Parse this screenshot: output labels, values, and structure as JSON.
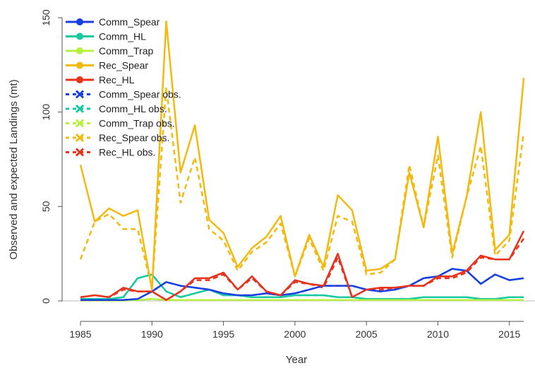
{
  "chart_data": {
    "type": "line",
    "xlabel": "Year",
    "ylabel": "Observed and expected Landings (mt)",
    "xlim": [
      1985,
      2016
    ],
    "ylim": [
      0,
      150
    ],
    "x_ticks": [
      "1985",
      "1990",
      "1995",
      "2000",
      "2005",
      "2010",
      "2015"
    ],
    "y_ticks": [
      "0",
      "50",
      "100",
      "150"
    ],
    "legend_position": "top-left",
    "x": [
      1985,
      1986,
      1987,
      1988,
      1989,
      1990,
      1991,
      1992,
      1993,
      1994,
      1995,
      1996,
      1997,
      1998,
      1999,
      2000,
      2001,
      2002,
      2003,
      2004,
      2005,
      2006,
      2007,
      2008,
      2009,
      2010,
      2011,
      2012,
      2013,
      2014,
      2015,
      2016
    ],
    "series": [
      {
        "name": "Comm_Spear",
        "color": "#1a3fe0",
        "dashed": false,
        "values": [
          0.5,
          0.5,
          0.5,
          0.5,
          1,
          5,
          10,
          8,
          7,
          6,
          4,
          3,
          3,
          4,
          3,
          4,
          6,
          8,
          8,
          8,
          6,
          5,
          6,
          8,
          12,
          13,
          17,
          16,
          9,
          14,
          11,
          12
        ]
      },
      {
        "name": "Comm_HL",
        "color": "#18c8a0",
        "dashed": false,
        "values": [
          1,
          1,
          1,
          2,
          12,
          14,
          5,
          2,
          4,
          6,
          3,
          3,
          2,
          2,
          2,
          3,
          3,
          3,
          2,
          2,
          1,
          1,
          1,
          1,
          2,
          2,
          2,
          2,
          1,
          1,
          2,
          2
        ]
      },
      {
        "name": "Comm_Trap",
        "color": "#b8f040",
        "dashed": false,
        "values": [
          0.2,
          0.2,
          0.2,
          0.2,
          0.5,
          1,
          0.5,
          0.5,
          0.5,
          0.5,
          0.5,
          0.5,
          0.5,
          0.5,
          0.5,
          0.5,
          0.5,
          0.5,
          0.5,
          0.5,
          0.5,
          0.5,
          0.5,
          0.5,
          0.5,
          0.5,
          0.5,
          0.5,
          0.5,
          0.5,
          0.5,
          0.5
        ]
      },
      {
        "name": "Rec_Spear",
        "color": "#f2b90f",
        "dashed": false,
        "values": [
          72,
          42,
          49,
          45,
          48,
          6,
          148,
          68,
          93,
          43,
          36,
          18,
          28,
          34,
          45,
          13,
          35,
          18,
          56,
          48,
          16,
          17,
          22,
          68,
          39,
          87,
          25,
          55,
          100,
          27,
          35,
          118
        ]
      },
      {
        "name": "Rec_HL",
        "color": "#e8321c",
        "dashed": false,
        "values": [
          2,
          3,
          2,
          7,
          5,
          5,
          0.5,
          5,
          12,
          12,
          15,
          6,
          13,
          5,
          3,
          11,
          9,
          8,
          25,
          2,
          6,
          7,
          7,
          8,
          8,
          13,
          13,
          16,
          24,
          22,
          22,
          37
        ]
      },
      {
        "name": "Comm_Spear obs.",
        "color": "#1a3fe0",
        "dashed": true,
        "values": [
          0.5,
          0.5,
          0.5,
          0.5,
          1,
          5,
          10,
          8,
          7,
          6,
          4,
          3,
          3,
          4,
          3,
          4,
          6,
          8,
          8,
          8,
          6,
          5,
          6,
          8,
          12,
          13,
          17,
          16,
          9,
          14,
          11,
          12
        ]
      },
      {
        "name": "Comm_HL obs.",
        "color": "#18c8a0",
        "dashed": true,
        "values": [
          1,
          1,
          1,
          2,
          12,
          14,
          5,
          2,
          4,
          6,
          3,
          3,
          2,
          2,
          2,
          3,
          3,
          3,
          2,
          2,
          1,
          1,
          1,
          1,
          2,
          2,
          2,
          2,
          1,
          1,
          2,
          2
        ]
      },
      {
        "name": "Comm_Trap obs.",
        "color": "#b8f040",
        "dashed": true,
        "values": [
          0.2,
          0.2,
          0.2,
          0.2,
          0.5,
          1,
          0.5,
          0.5,
          0.5,
          0.5,
          0.5,
          0.5,
          0.5,
          0.5,
          0.5,
          0.5,
          0.5,
          0.5,
          0.5,
          0.5,
          0.5,
          0.5,
          0.5,
          0.5,
          0.5,
          0.5,
          0.5,
          0.5,
          0.5,
          0.5,
          0.5,
          0.5
        ]
      },
      {
        "name": "Rec_Spear obs.",
        "color": "#f2b90f",
        "dashed": true,
        "values": [
          22,
          42,
          46,
          38,
          38,
          7,
          113,
          52,
          76,
          38,
          32,
          16,
          26,
          31,
          41,
          13,
          33,
          16,
          45,
          42,
          14,
          15,
          22,
          72,
          39,
          77,
          23,
          55,
          82,
          24,
          32,
          89
        ]
      },
      {
        "name": "Rec_HL obs.",
        "color": "#e8321c",
        "dashed": true,
        "values": [
          2,
          3,
          2,
          6,
          5,
          5,
          0.5,
          5,
          11,
          11,
          14,
          6,
          12,
          5,
          3,
          10,
          9,
          7,
          23,
          2,
          6,
          6,
          7,
          8,
          8,
          12,
          12,
          15,
          23,
          22,
          22,
          33
        ]
      }
    ]
  }
}
